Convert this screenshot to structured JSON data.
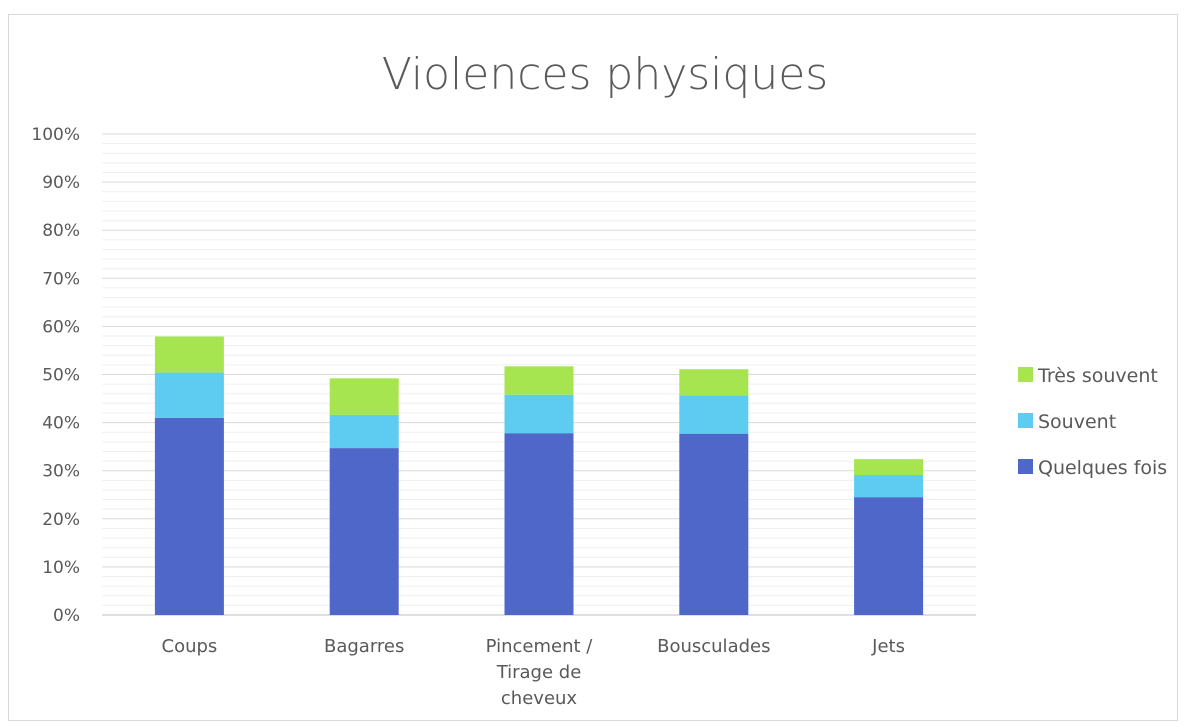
{
  "chart_data": {
    "type": "bar",
    "stacked": true,
    "title": "Violences physiques",
    "xlabel": "",
    "ylabel": "",
    "ylim": [
      0,
      100
    ],
    "y_ticks": [
      "0%",
      "10%",
      "20%",
      "30%",
      "40%",
      "50%",
      "60%",
      "70%",
      "80%",
      "90%",
      "100%"
    ],
    "categories": [
      [
        "Coups"
      ],
      [
        "Bagarres"
      ],
      [
        "Pincement /",
        "Tirage de",
        "cheveux"
      ],
      [
        "Bousculades"
      ],
      [
        "Jets"
      ]
    ],
    "series": [
      {
        "name": "Quelques fois",
        "color": "#4e67c8",
        "values": [
          41,
          34.7,
          37.8,
          37.7,
          24.5
        ]
      },
      {
        "name": "Souvent",
        "color": "#5ecbf0",
        "values": [
          9.4,
          6.9,
          8,
          8,
          4.6
        ]
      },
      {
        "name": "Très souvent",
        "color": "#a6e54f",
        "values": [
          7.5,
          7.6,
          5.9,
          5.4,
          3.3
        ]
      }
    ],
    "legend_position": "right",
    "grid": true
  }
}
